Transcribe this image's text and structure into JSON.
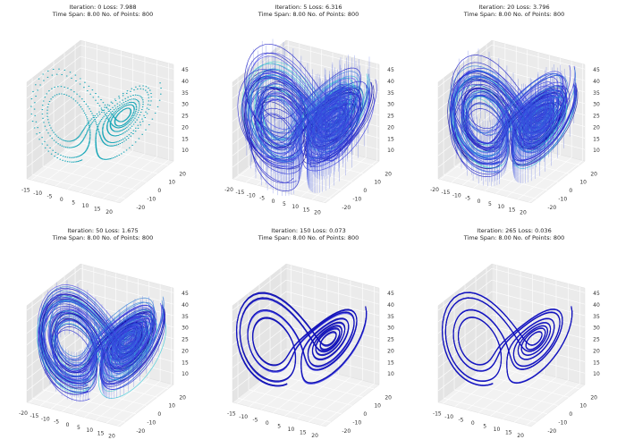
{
  "chart_data": [
    {
      "type": "line3d",
      "title": "Iteration: 0 Loss: 7.988",
      "subtitle": "Time Span: 8.00 No. of Points: 800",
      "xlim": [
        -17,
        22
      ],
      "ylim": [
        -25,
        25
      ],
      "zlim": [
        5,
        47
      ],
      "xticks": [
        -15,
        -10,
        -5,
        0,
        5,
        10,
        15,
        20
      ],
      "yticks": [
        -20,
        -10,
        0,
        10,
        20
      ],
      "zticks": [
        10,
        15,
        20,
        25,
        30,
        35,
        40,
        45
      ]
    },
    {
      "type": "line3d",
      "title": "Iteration: 5 Loss: 6.316",
      "subtitle": "Time Span: 8.00 No. of Points: 800",
      "xlim": [
        -21,
        21
      ],
      "ylim": [
        -25,
        25
      ],
      "zlim": [
        5,
        47
      ],
      "xticks": [
        -20,
        -15,
        -10,
        -5,
        0,
        5,
        10,
        15,
        20
      ],
      "yticks": [
        -20,
        -10,
        0,
        10,
        20
      ],
      "zticks": [
        10,
        15,
        20,
        25,
        30,
        35,
        40,
        45
      ]
    },
    {
      "type": "line3d",
      "title": "Iteration: 20 Loss: 3.796",
      "subtitle": "Time Span: 8.00 No. of Points: 800",
      "xlim": [
        -21,
        21
      ],
      "ylim": [
        -25,
        25
      ],
      "zlim": [
        5,
        47
      ],
      "xticks": [
        -20,
        -15,
        -10,
        -5,
        0,
        5,
        10,
        15,
        20
      ],
      "yticks": [
        -20,
        -10,
        0,
        10,
        20
      ],
      "zticks": [
        10,
        15,
        20,
        25,
        30,
        35,
        40,
        45
      ]
    },
    {
      "type": "line3d",
      "title": "Iteration: 50 Loss: 1.675",
      "subtitle": "Time Span: 8.00 No. of Points: 800",
      "xlim": [
        -21,
        21
      ],
      "ylim": [
        -25,
        25
      ],
      "zlim": [
        5,
        47
      ],
      "xticks": [
        -20,
        -15,
        -10,
        -5,
        0,
        5,
        10,
        15,
        20
      ],
      "yticks": [
        -20,
        -10,
        0,
        10,
        20
      ],
      "zticks": [
        10,
        15,
        20,
        25,
        30,
        35,
        40,
        45
      ]
    },
    {
      "type": "line3d",
      "title": "Iteration: 150 Loss: 0.073",
      "subtitle": "Time Span: 8.00 No. of Points: 800",
      "xlim": [
        -17,
        22
      ],
      "ylim": [
        -25,
        25
      ],
      "zlim": [
        5,
        47
      ],
      "xticks": [
        -15,
        -10,
        -5,
        0,
        5,
        10,
        15,
        20
      ],
      "yticks": [
        -20,
        -10,
        0,
        10,
        20
      ],
      "zticks": [
        10,
        15,
        20,
        25,
        30,
        35,
        40,
        45
      ]
    },
    {
      "type": "line3d",
      "title": "Iteration: 265 Loss: 0.036",
      "subtitle": "Time Span: 8.00 No. of Points: 800",
      "xlim": [
        -17,
        22
      ],
      "ylim": [
        -25,
        25
      ],
      "zlim": [
        5,
        47
      ],
      "xticks": [
        -15,
        -10,
        -5,
        0,
        5,
        10,
        15,
        20
      ],
      "yticks": [
        -20,
        -10,
        0,
        10,
        20
      ],
      "zticks": [
        10,
        15,
        20,
        25,
        30,
        35,
        40,
        45
      ]
    }
  ]
}
